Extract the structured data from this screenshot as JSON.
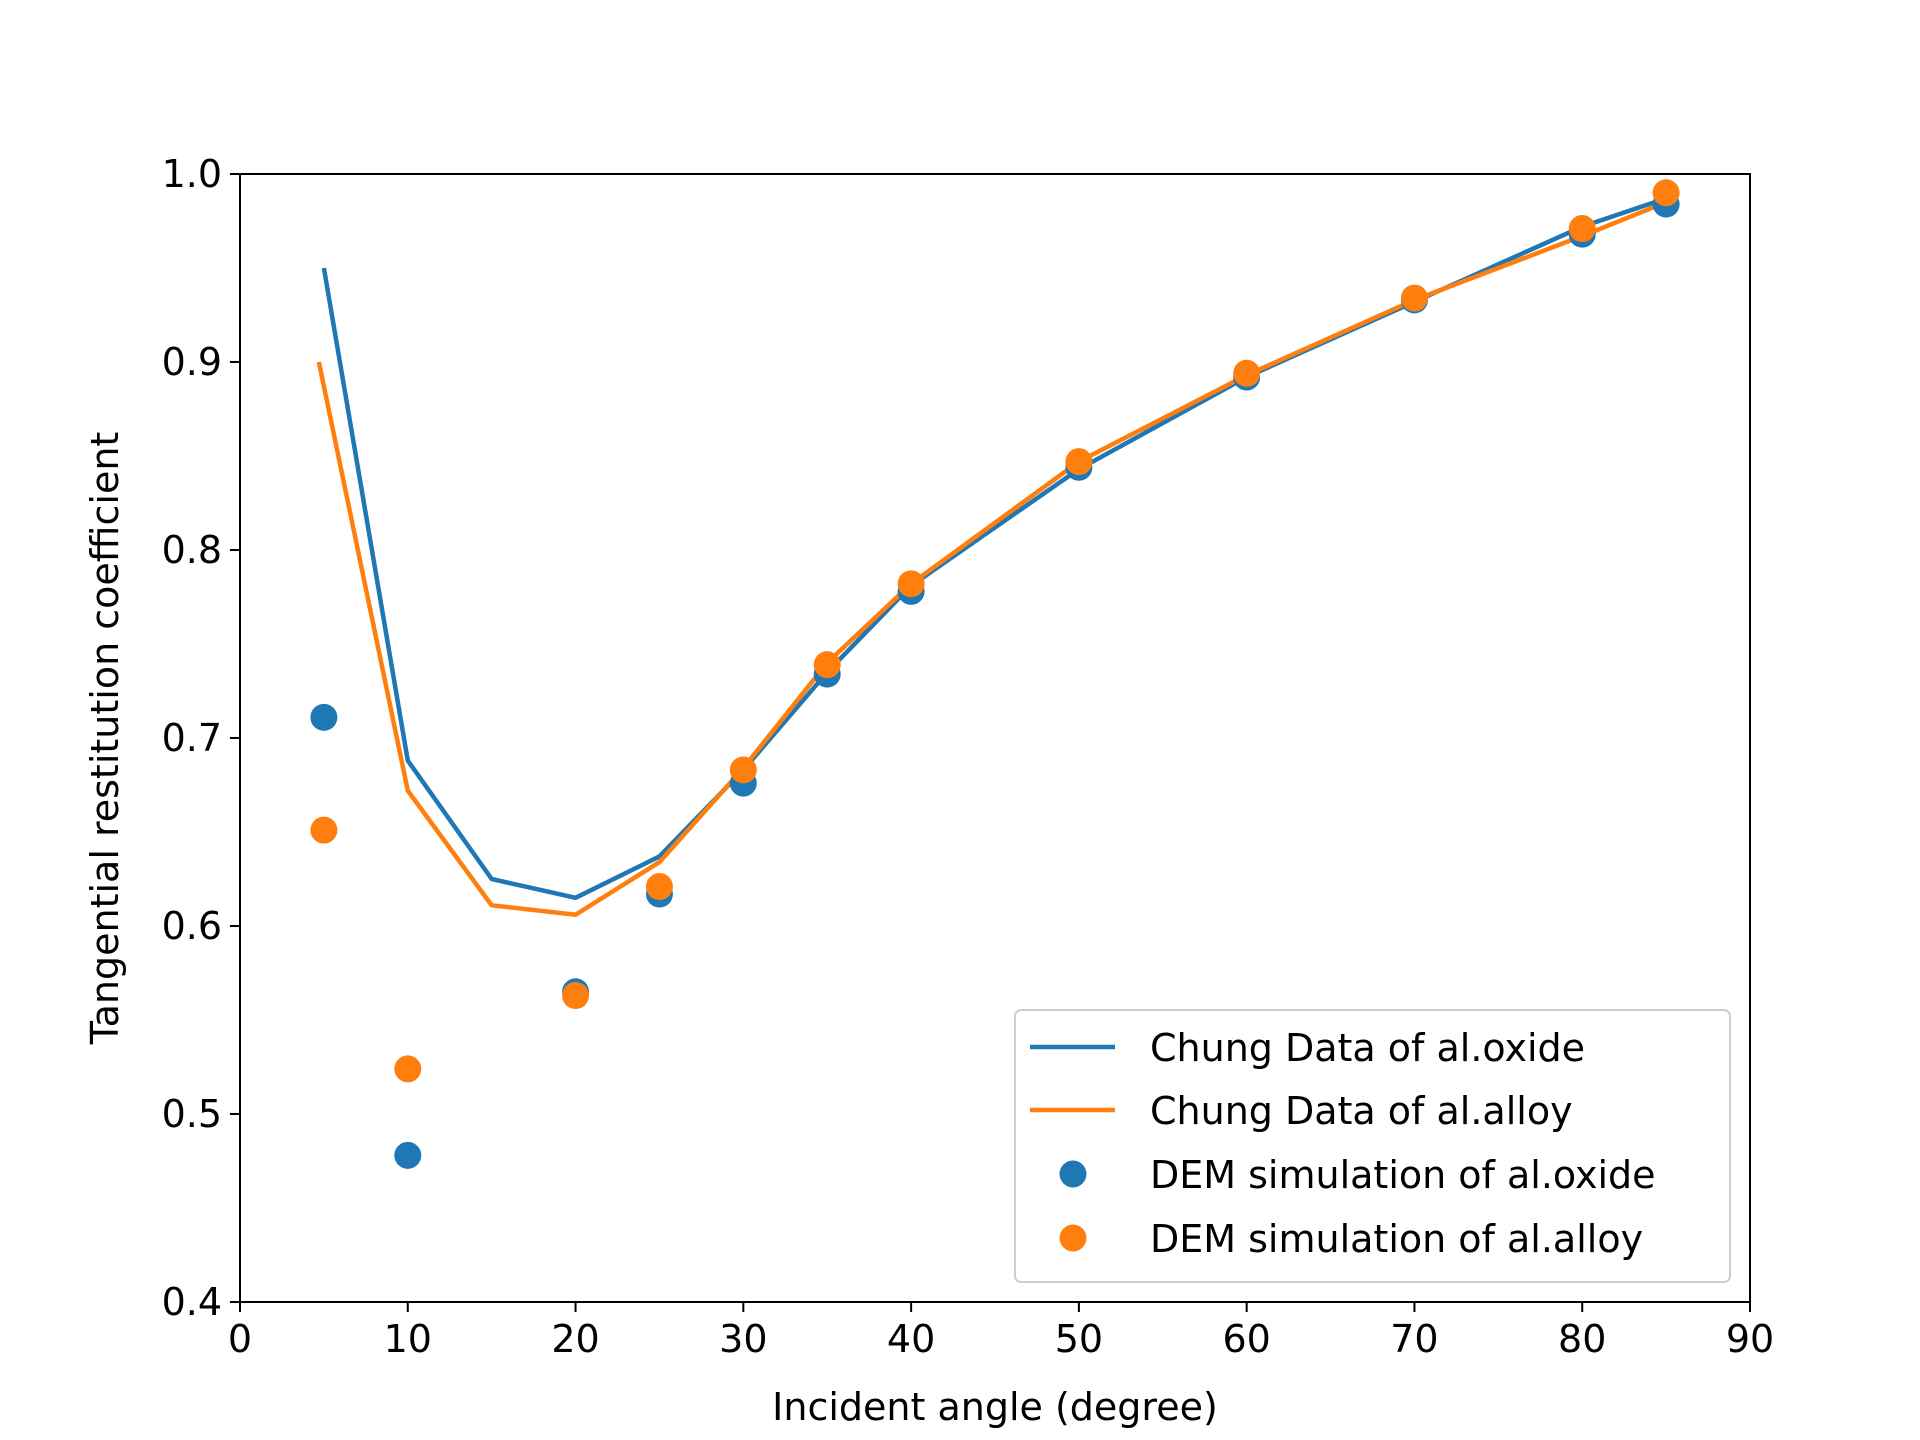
{
  "chart_data": {
    "type": "line+scatter",
    "xlabel": "Incident angle (degree)",
    "ylabel": "Tangential restitution coefficient",
    "xlim": [
      0,
      90
    ],
    "ylim": [
      0.4,
      1.0
    ],
    "xticks": [
      0,
      10,
      20,
      30,
      40,
      50,
      60,
      70,
      80,
      90
    ],
    "xtick_labels": [
      "0",
      "10",
      "20",
      "30",
      "40",
      "50",
      "60",
      "70",
      "80",
      "90"
    ],
    "yticks": [
      0.4,
      0.5,
      0.6,
      0.7,
      0.8,
      0.9,
      1.0
    ],
    "ytick_labels": [
      "0.4",
      "0.5",
      "0.6",
      "0.7",
      "0.8",
      "0.9",
      "1.0"
    ],
    "grid": false,
    "legend_position": "lower-right",
    "series": [
      {
        "name": "Chung Data of al.oxide",
        "kind": "line",
        "color": "#1f77b4",
        "x": [
          5,
          10,
          15,
          20,
          25,
          30,
          35,
          40,
          50,
          60,
          70,
          80,
          85
        ],
        "y": [
          0.95,
          0.688,
          0.625,
          0.615,
          0.637,
          0.683,
          0.735,
          0.781,
          0.843,
          0.892,
          0.932,
          0.972,
          0.987
        ]
      },
      {
        "name": "Chung Data of al.alloy",
        "kind": "line",
        "color": "#ff7f0e",
        "x": [
          4.7,
          10,
          15,
          20,
          25,
          30,
          35,
          40,
          50,
          60,
          70,
          80,
          85
        ],
        "y": [
          0.9,
          0.672,
          0.611,
          0.606,
          0.634,
          0.684,
          0.74,
          0.782,
          0.847,
          0.893,
          0.933,
          0.967,
          0.985
        ]
      },
      {
        "name": "DEM simulation of al.oxide",
        "kind": "scatter",
        "color": "#1f77b4",
        "x": [
          5,
          10,
          20,
          25,
          30,
          35,
          40,
          50,
          60,
          70,
          80,
          85
        ],
        "y": [
          0.711,
          0.478,
          0.565,
          0.617,
          0.676,
          0.734,
          0.778,
          0.844,
          0.892,
          0.933,
          0.968,
          0.984
        ]
      },
      {
        "name": "DEM simulation of al.alloy",
        "kind": "scatter",
        "color": "#ff7f0e",
        "x": [
          5,
          10,
          20,
          25,
          30,
          35,
          40,
          50,
          60,
          70,
          80,
          85
        ],
        "y": [
          0.651,
          0.524,
          0.563,
          0.621,
          0.683,
          0.739,
          0.782,
          0.847,
          0.894,
          0.934,
          0.971,
          0.99
        ]
      }
    ]
  }
}
